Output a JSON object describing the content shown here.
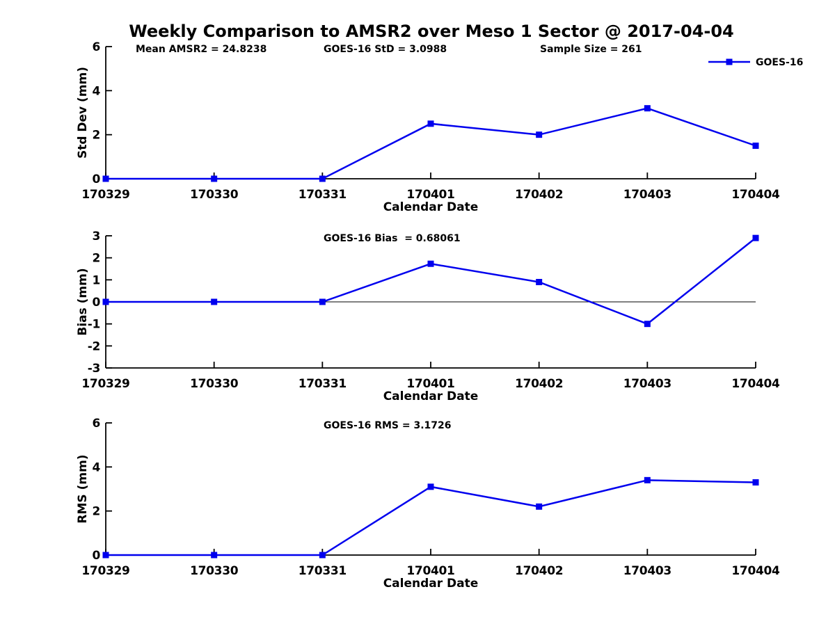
{
  "title": "Weekly Comparison to AMSR2 over Meso 1 Sector @ 2017-04-04",
  "colors": {
    "series_line": "#0000ee",
    "axis": "#000000",
    "text": "#000000",
    "background": "#ffffff"
  },
  "chart_data": [
    {
      "type": "line",
      "ylabel": "Std Dev (mm)",
      "xlabel": "Calendar Date",
      "ylim": [
        0,
        6
      ],
      "yticks": [
        0,
        2,
        4,
        6
      ],
      "grid": false,
      "categories": [
        "170329",
        "170330",
        "170331",
        "170401",
        "170402",
        "170403",
        "170404"
      ],
      "series": [
        {
          "name": "GOES-16",
          "values": [
            0,
            0,
            0,
            2.5,
            2.0,
            3.2,
            1.5
          ]
        }
      ],
      "annotations": [
        "Mean AMSR2 = 24.8238",
        "GOES-16 StD = 3.0988",
        "Sample Size = 261"
      ],
      "legend": {
        "entries": [
          "GOES-16"
        ],
        "position": "northeast-outside"
      }
    },
    {
      "type": "line",
      "ylabel": "Bias (mm)",
      "xlabel": "Calendar Date",
      "ylim": [
        -3,
        3
      ],
      "yticks": [
        -3,
        -2,
        -1,
        0,
        1,
        2,
        3
      ],
      "grid": false,
      "zero_line": true,
      "categories": [
        "170329",
        "170330",
        "170331",
        "170401",
        "170402",
        "170403",
        "170404"
      ],
      "series": [
        {
          "name": "GOES-16",
          "values": [
            0,
            0,
            0,
            1.73,
            0.9,
            -1.0,
            2.9
          ]
        }
      ],
      "annotations": [
        "GOES-16 Bias  = 0.68061"
      ]
    },
    {
      "type": "line",
      "ylabel": "RMS (mm)",
      "xlabel": "Calendar Date",
      "ylim": [
        0,
        6
      ],
      "yticks": [
        0,
        2,
        4,
        6
      ],
      "grid": false,
      "categories": [
        "170329",
        "170330",
        "170331",
        "170401",
        "170402",
        "170403",
        "170404"
      ],
      "series": [
        {
          "name": "GOES-16",
          "values": [
            0,
            0,
            0,
            3.1,
            2.2,
            3.4,
            3.3
          ]
        }
      ],
      "annotations": [
        "GOES-16 RMS = 3.1726"
      ]
    }
  ]
}
